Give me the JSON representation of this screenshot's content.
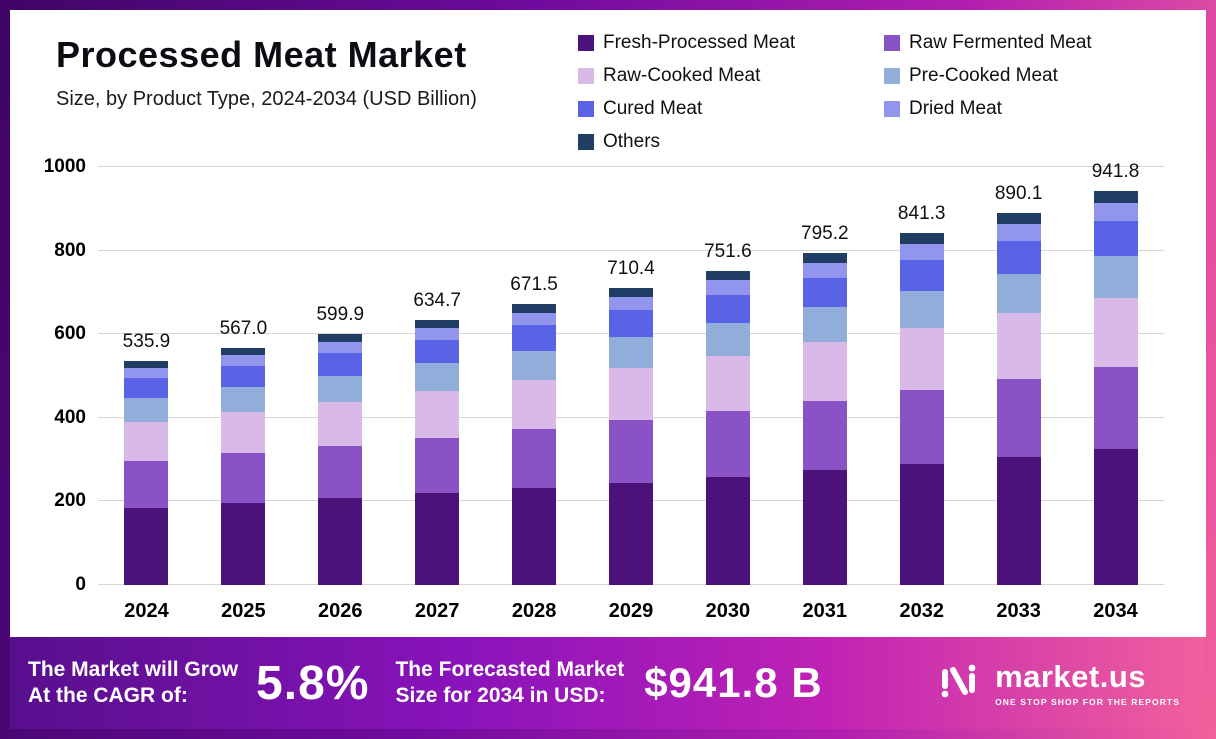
{
  "header": {
    "title": "Processed Meat Market",
    "subtitle": "Size, by Product Type, 2024-2034 (USD Billion)"
  },
  "chart_data": {
    "type": "bar",
    "stacked": true,
    "title": "Processed Meat Market Size, by Product Type, 2024-2034 (USD Billion)",
    "categories": [
      "2024",
      "2025",
      "2026",
      "2027",
      "2028",
      "2029",
      "2030",
      "2031",
      "2032",
      "2033",
      "2034"
    ],
    "totals": [
      "535.9",
      "567.0",
      "599.9",
      "634.7",
      "671.5",
      "710.4",
      "751.6",
      "795.2",
      "841.3",
      "890.1",
      "941.8"
    ],
    "ylim": [
      0,
      1000
    ],
    "yticks": [
      0,
      200,
      400,
      600,
      800,
      1000
    ],
    "grid": true,
    "legend_position": "top-right",
    "series": [
      {
        "name": "Fresh-Processed Meat",
        "color": "#4b1379",
        "values": [
          184.9,
          195.6,
          207.0,
          219.0,
          231.7,
          245.1,
          259.3,
          274.3,
          290.2,
          307.1,
          324.9
        ]
      },
      {
        "name": "Raw Fermented Meat",
        "color": "#8a53c5",
        "values": [
          112.5,
          119.1,
          126.0,
          133.3,
          141.0,
          149.2,
          157.8,
          167.0,
          176.7,
          186.9,
          197.8
        ]
      },
      {
        "name": "Raw-Cooked Meat",
        "color": "#d8b9e8",
        "values": [
          93.8,
          99.2,
          105.0,
          111.1,
          117.5,
          124.3,
          131.5,
          139.2,
          147.2,
          155.8,
          164.8
        ]
      },
      {
        "name": "Pre-Cooked Meat",
        "color": "#90aed9",
        "values": [
          56.3,
          59.5,
          63.0,
          66.6,
          70.5,
          74.6,
          78.9,
          83.5,
          88.3,
          93.5,
          98.9
        ]
      },
      {
        "name": "Cured Meat",
        "color": "#5a63e6",
        "values": [
          48.2,
          51.0,
          54.0,
          57.1,
          60.4,
          63.9,
          67.6,
          71.6,
          75.7,
          80.1,
          84.8
        ]
      },
      {
        "name": "Dried Meat",
        "color": "#9295ee",
        "values": [
          24.1,
          25.5,
          27.0,
          28.6,
          30.2,
          32.0,
          33.8,
          35.8,
          37.9,
          40.1,
          42.4
        ]
      },
      {
        "name": "Others",
        "color": "#203e63",
        "values": [
          16.1,
          17.0,
          18.0,
          19.0,
          20.1,
          21.3,
          22.5,
          23.9,
          25.2,
          26.7,
          28.3
        ]
      }
    ]
  },
  "footer": {
    "cagr_label_line1": "The Market will Grow",
    "cagr_label_line2": "At the CAGR of:",
    "cagr_value": "5.8%",
    "forecast_label_line1": "The Forecasted Market",
    "forecast_label_line2": "Size for 2034 in USD:",
    "forecast_value": "$941.8 B",
    "brand_name": "market.us",
    "brand_tagline": "ONE STOP SHOP FOR THE REPORTS"
  }
}
